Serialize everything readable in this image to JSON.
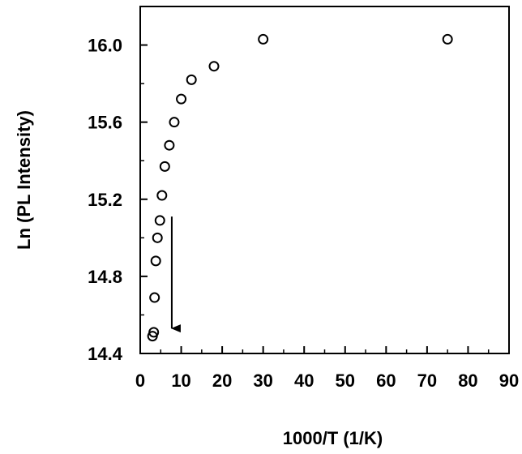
{
  "chart_data": {
    "type": "scatter",
    "title": "",
    "xlabel": "1000/T (1/K)",
    "ylabel": "Ln (PL Intensity)",
    "xlim": [
      0,
      90
    ],
    "ylim": [
      14.4,
      16.2
    ],
    "x_ticks": [
      0,
      10,
      20,
      30,
      40,
      50,
      60,
      70,
      80,
      90
    ],
    "x_tick_labels": [
      "0",
      "10",
      "20",
      "30",
      "40",
      "50",
      "60",
      "70",
      "80",
      "90"
    ],
    "y_ticks": [
      14.4,
      14.8,
      15.2,
      15.6,
      16.0
    ],
    "y_tick_labels": [
      "14.4",
      "14.8",
      "15.2",
      "15.6",
      "16.0"
    ],
    "grid": false,
    "legend": "none",
    "marker": "open-circle",
    "series": [
      {
        "points": [
          {
            "x": 3.0,
            "y": 14.49
          },
          {
            "x": 3.3,
            "y": 14.51
          },
          {
            "x": 3.5,
            "y": 14.69
          },
          {
            "x": 3.8,
            "y": 14.88
          },
          {
            "x": 4.2,
            "y": 15.0
          },
          {
            "x": 4.8,
            "y": 15.09
          },
          {
            "x": 5.3,
            "y": 15.22
          },
          {
            "x": 6.0,
            "y": 15.37
          },
          {
            "x": 7.1,
            "y": 15.48
          },
          {
            "x": 8.3,
            "y": 15.6
          },
          {
            "x": 10.0,
            "y": 15.72
          },
          {
            "x": 12.5,
            "y": 15.82
          },
          {
            "x": 18.0,
            "y": 15.89
          },
          {
            "x": 30.0,
            "y": 16.03
          },
          {
            "x": 75.0,
            "y": 16.03
          }
        ]
      }
    ],
    "annotations": [
      {
        "type": "arrow",
        "direction": "down",
        "from": {
          "x": 7.7,
          "y": 15.11
        },
        "to": {
          "x": 7.7,
          "y": 14.53
        }
      }
    ]
  }
}
